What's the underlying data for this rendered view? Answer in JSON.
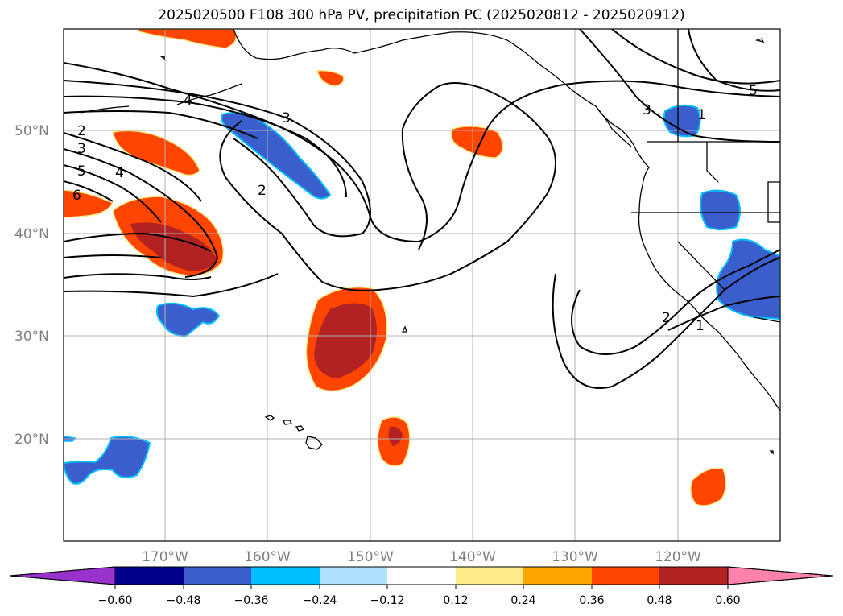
{
  "title": "2025020500 F108 300 hPa PV, precipitation PC (2025020812 - 2025020912)",
  "map": {
    "lat_labels": [
      "50°N",
      "40°N",
      "30°N",
      "20°N"
    ],
    "lon_labels": [
      "170°W",
      "160°W",
      "150°W",
      "140°W",
      "130°W",
      "120°W"
    ],
    "pv_contour_labels": [
      "2",
      "3",
      "5",
      "6",
      "4",
      "2",
      "3",
      "4",
      "1",
      "3",
      "2",
      "1",
      "5"
    ]
  },
  "colorbar": {
    "ticks": [
      "−0.60",
      "−0.48",
      "−0.36",
      "−0.24",
      "−0.12",
      "0.12",
      "0.24",
      "0.36",
      "0.48",
      "0.60"
    ],
    "colors": [
      "#9932cc",
      "#00008b",
      "#3a5fcd",
      "#00bfff",
      "#b0e2ff",
      "#ffffff",
      "#ffec8b",
      "#ffa500",
      "#ff4500",
      "#b22222",
      "#ff82ab"
    ]
  }
}
